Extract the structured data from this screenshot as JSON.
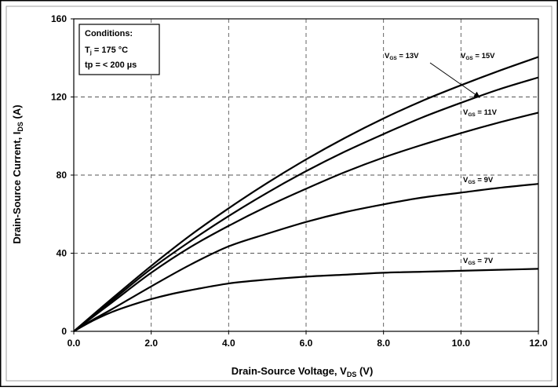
{
  "chart_data": {
    "type": "line",
    "xlabel": {
      "main": "Drain-Source Voltage, V",
      "sub": "DS",
      "tail": " (V)"
    },
    "ylabel": {
      "main": "Drain-Source Current, I",
      "sub": "DS",
      "tail": " (A)"
    },
    "xlim": [
      0,
      12
    ],
    "ylim": [
      0,
      160
    ],
    "xticks": [
      "0.0",
      "2.0",
      "4.0",
      "6.0",
      "8.0",
      "10.0",
      "12.0"
    ],
    "yticks": [
      "0",
      "40",
      "80",
      "120",
      "160"
    ],
    "grid": true,
    "conditions": {
      "title": "Conditions:",
      "tj": {
        "pre": "T",
        "sub": "j",
        "post": " = 175 °C"
      },
      "tp": "tp = < 200 µs"
    },
    "series": [
      {
        "name": "VGS = 7V",
        "label": {
          "pre": "V",
          "sub": "GS",
          "post": " = 7V"
        },
        "x": [
          0,
          0.5,
          1,
          1.5,
          2,
          2.5,
          3,
          4,
          5,
          6,
          7,
          8,
          9,
          10,
          11,
          12
        ],
        "y": [
          0,
          5.5,
          10,
          13.5,
          16.5,
          19,
          21,
          24.5,
          26.5,
          28,
          29,
          30,
          30.5,
          31,
          31.5,
          32
        ]
      },
      {
        "name": "VGS = 9V",
        "label": {
          "pre": "V",
          "sub": "GS",
          "post": " = 9V"
        },
        "x": [
          0,
          0.5,
          1,
          2,
          3,
          4,
          5,
          6,
          7,
          8,
          9,
          10,
          11,
          12
        ],
        "y": [
          0,
          6,
          11.5,
          23,
          34,
          43.5,
          50,
          56,
          61,
          65,
          68.5,
          71,
          73.5,
          75.5
        ]
      },
      {
        "name": "VGS = 11V",
        "label": {
          "pre": "V",
          "sub": "GS",
          "post": " = 11V"
        },
        "x": [
          0,
          1,
          2,
          3,
          4,
          5,
          6,
          7,
          8,
          9,
          10,
          11,
          12
        ],
        "y": [
          0,
          15,
          30,
          43,
          54,
          64,
          73,
          81.5,
          89,
          95.5,
          101.5,
          107,
          112
        ]
      },
      {
        "name": "VGS = 13V",
        "label": {
          "pre": "V",
          "sub": "GS",
          "post": " = 13V"
        },
        "x": [
          0,
          1,
          2,
          3,
          4,
          5,
          6,
          7,
          8,
          9,
          10,
          11,
          12
        ],
        "y": [
          0,
          16,
          32,
          46,
          59,
          71,
          82,
          92,
          101,
          109.5,
          117,
          124,
          130
        ]
      },
      {
        "name": "VGS = 15V",
        "label": {
          "pre": "V",
          "sub": "GS",
          "post": " = 15V"
        },
        "x": [
          0,
          1,
          2,
          3,
          4,
          5,
          6,
          7,
          8,
          9,
          10,
          11,
          12
        ],
        "y": [
          0,
          17,
          33.5,
          49,
          63,
          76,
          88,
          99,
          109,
          118,
          126,
          133.5,
          140.5
        ]
      }
    ]
  }
}
